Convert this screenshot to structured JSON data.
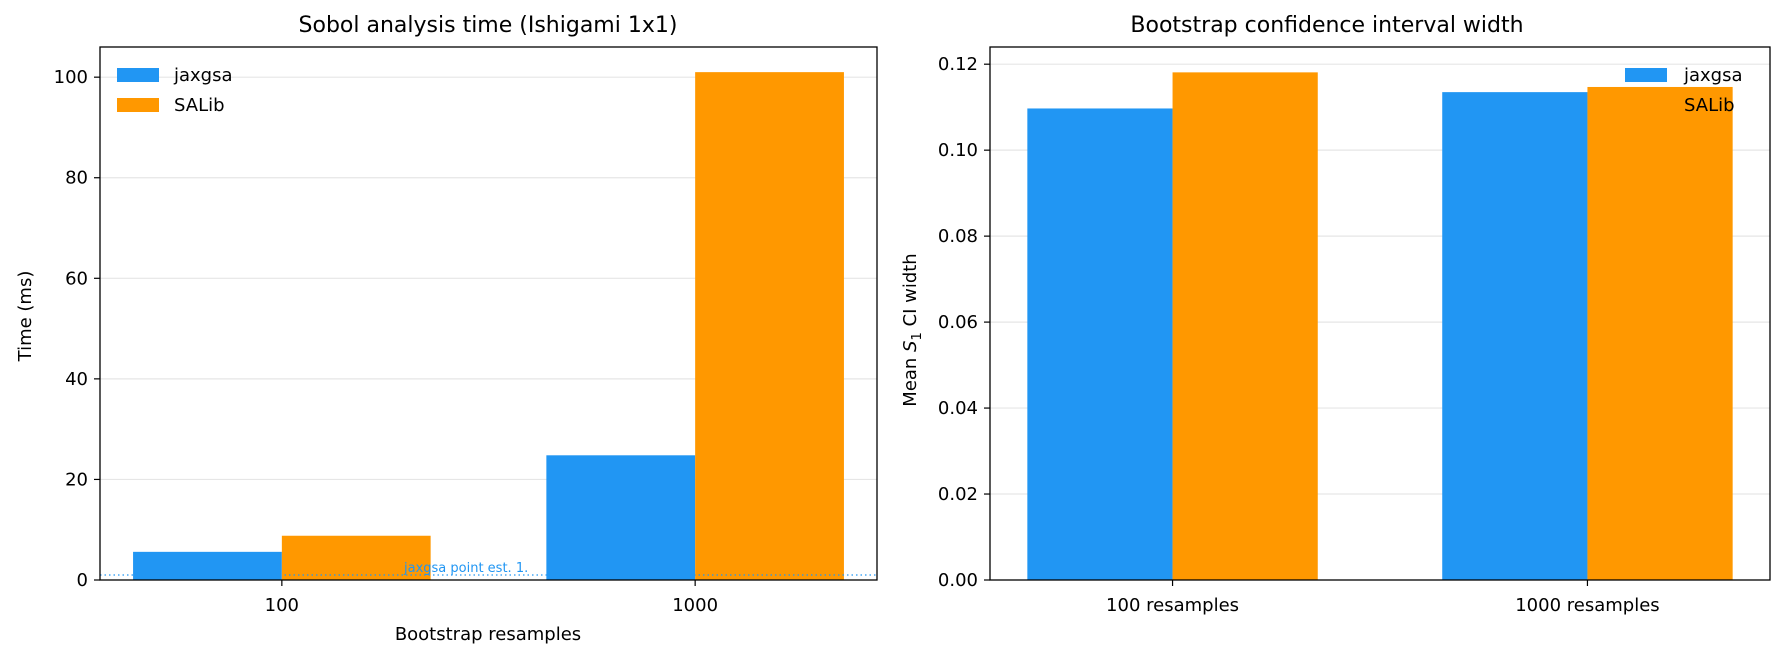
{
  "colors": {
    "jaxgsa": "#2196F3",
    "salib": "#FF9800",
    "grid": "#e6e6e6",
    "reference_line": "#2196F3"
  },
  "chart_data": [
    {
      "type": "bar",
      "title": "Sobol analysis time (Ishigami 1x1)",
      "xlabel": "Bootstrap resamples",
      "ylabel": "Time (ms)",
      "categories": [
        "100",
        "1000"
      ],
      "series": [
        {
          "name": "jaxgsa",
          "values": [
            5.6,
            24.8
          ]
        },
        {
          "name": "SALib",
          "values": [
            8.8,
            101.0
          ]
        }
      ],
      "ylim": [
        0,
        106
      ],
      "yticks": [
        0,
        20,
        40,
        60,
        80,
        100
      ],
      "ytick_labels": [
        "0",
        "20",
        "40",
        "60",
        "80",
        "100"
      ],
      "grid": "y",
      "legend": "top-left",
      "reference_line": {
        "y": 1.0,
        "style": "dotted",
        "label": "jaxgsa point est. 1."
      }
    },
    {
      "type": "bar",
      "title": "Bootstrap confidence interval width",
      "xlabel": "",
      "ylabel_prefix": "Mean ",
      "ylabel_var": "S",
      "ylabel_sub": "1",
      "ylabel_suffix": " CI width",
      "categories": [
        "100 resamples",
        "1000 resamples"
      ],
      "series": [
        {
          "name": "jaxgsa",
          "values": [
            0.1097,
            0.1135
          ]
        },
        {
          "name": "SALib",
          "values": [
            0.1181,
            0.1147
          ]
        }
      ],
      "ylim": [
        0,
        0.124
      ],
      "yticks": [
        0,
        0.02,
        0.04,
        0.06,
        0.08,
        0.1,
        0.12
      ],
      "ytick_labels": [
        "0.00",
        "0.02",
        "0.04",
        "0.06",
        "0.08",
        "0.10",
        "0.12"
      ],
      "grid": "y",
      "legend": "top-right"
    }
  ]
}
